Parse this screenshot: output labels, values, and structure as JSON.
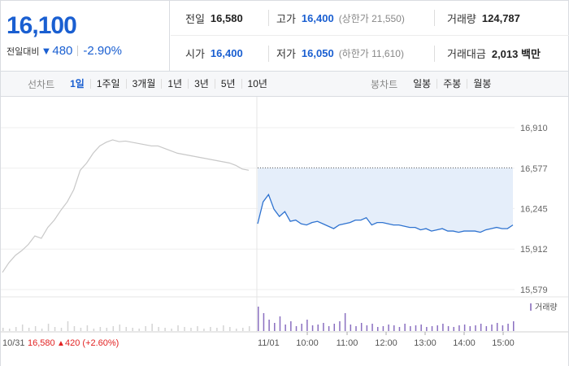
{
  "quote": {
    "price": "16,100",
    "change_label": "전일대비",
    "change_arrow": "▼",
    "change_amount": "480",
    "change_rate": "-2.90%",
    "color_down": "#1a5fd1",
    "color_up": "#e22222"
  },
  "stats": {
    "prev_label": "전일",
    "prev_value": "16,580",
    "high_label": "고가",
    "high_value": "16,400",
    "upper_limit": "(상한가 21,550)",
    "volume_label": "거래량",
    "volume_value": "124,787",
    "open_label": "시가",
    "open_value": "16,400",
    "low_label": "저가",
    "low_value": "16,050",
    "lower_limit": "(하한가 11,610)",
    "amount_label": "거래대금",
    "amount_value": "2,013 백만"
  },
  "period_bar": {
    "line_label": "선차트",
    "line_items": [
      "1일",
      "1주일",
      "3개월",
      "1년",
      "3년",
      "5년",
      "10년"
    ],
    "line_active": 0,
    "candle_label": "봉차트",
    "candle_items": [
      "일봉",
      "주봉",
      "월봉"
    ]
  },
  "chart_data": {
    "type": "line",
    "y_ticks": [
      "16,910",
      "16,577",
      "16,245",
      "15,912",
      "15,579"
    ],
    "y_tick_values": [
      16910,
      16577,
      16245,
      15912,
      15579
    ],
    "prev_close": 16580,
    "volume_legend": "거래량",
    "prev_day": {
      "date_label": "10/31",
      "close_label": "16,580",
      "change_arrow": "▲",
      "change_text": "420 (+2.60%)",
      "series": [
        15720,
        15800,
        15860,
        15900,
        15950,
        16020,
        16000,
        16090,
        16150,
        16230,
        16300,
        16400,
        16560,
        16620,
        16700,
        16760,
        16790,
        16810,
        16795,
        16800,
        16790,
        16780,
        16770,
        16760,
        16760,
        16740,
        16720,
        16700,
        16690,
        16680,
        16670,
        16660,
        16650,
        16640,
        16630,
        16620,
        16600,
        16570,
        16560
      ]
    },
    "today": {
      "date_label": "11/01",
      "x_labels": [
        "10:00",
        "11:00",
        "12:00",
        "13:00",
        "14:00",
        "15:00"
      ],
      "series": [
        16120,
        16300,
        16360,
        16240,
        16180,
        16220,
        16140,
        16150,
        16120,
        16110,
        16130,
        16140,
        16120,
        16100,
        16080,
        16110,
        16120,
        16130,
        16150,
        16150,
        16170,
        16110,
        16130,
        16130,
        16120,
        16110,
        16110,
        16100,
        16090,
        16090,
        16070,
        16080,
        16060,
        16070,
        16080,
        16060,
        16060,
        16050,
        16060,
        16060,
        16060,
        16050,
        16070,
        16080,
        16090,
        16080,
        16080,
        16110
      ]
    },
    "volume_prev": [
      4,
      3,
      5,
      8,
      4,
      6,
      3,
      9,
      5,
      4,
      12,
      6,
      4,
      7,
      3,
      5,
      4,
      6,
      8,
      5,
      4,
      3,
      6,
      9,
      5,
      4,
      3,
      7,
      5,
      4,
      6,
      3,
      5,
      4,
      7,
      5,
      3,
      4,
      6
    ],
    "volume_today": [
      30,
      22,
      14,
      10,
      18,
      8,
      12,
      6,
      9,
      14,
      7,
      8,
      10,
      6,
      9,
      12,
      22,
      8,
      6,
      10,
      7,
      9,
      5,
      6,
      8,
      7,
      5,
      9,
      6,
      7,
      8,
      5,
      6,
      7,
      9,
      6,
      5,
      7,
      8,
      6,
      7,
      9,
      6,
      8,
      10,
      7,
      9,
      12
    ]
  }
}
